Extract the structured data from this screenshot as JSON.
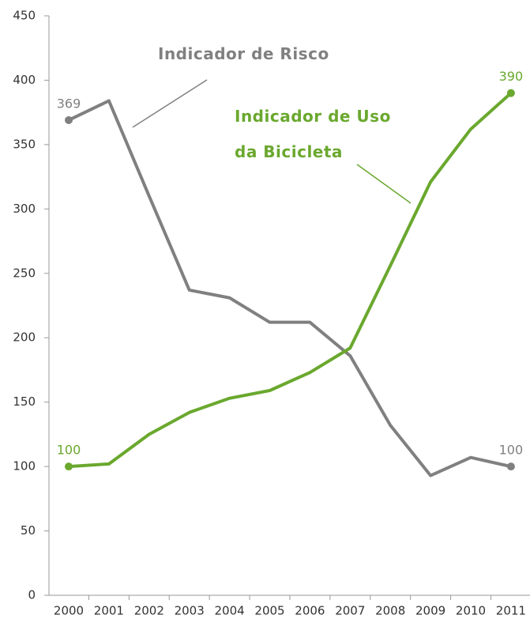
{
  "chart_data": {
    "type": "line",
    "categories": [
      "2000",
      "2001",
      "2002",
      "2003",
      "2004",
      "2005",
      "2006",
      "2007",
      "2008",
      "2009",
      "2010",
      "2011"
    ],
    "series": [
      {
        "name": "Indicador de Risco",
        "color": "#808080",
        "values": [
          369,
          384,
          310,
          237,
          231,
          212,
          212,
          186,
          132,
          93,
          107,
          100
        ]
      },
      {
        "name": "Indicador de Uso da Bicicleta",
        "color": "#6aa82e",
        "values": [
          100,
          102,
          125,
          142,
          153,
          159,
          173,
          192,
          256,
          321,
          362,
          390
        ]
      }
    ],
    "ylim": [
      0,
      450
    ],
    "yticks": [
      0,
      50,
      100,
      150,
      200,
      250,
      300,
      350,
      400,
      450
    ],
    "grid": false
  }
}
